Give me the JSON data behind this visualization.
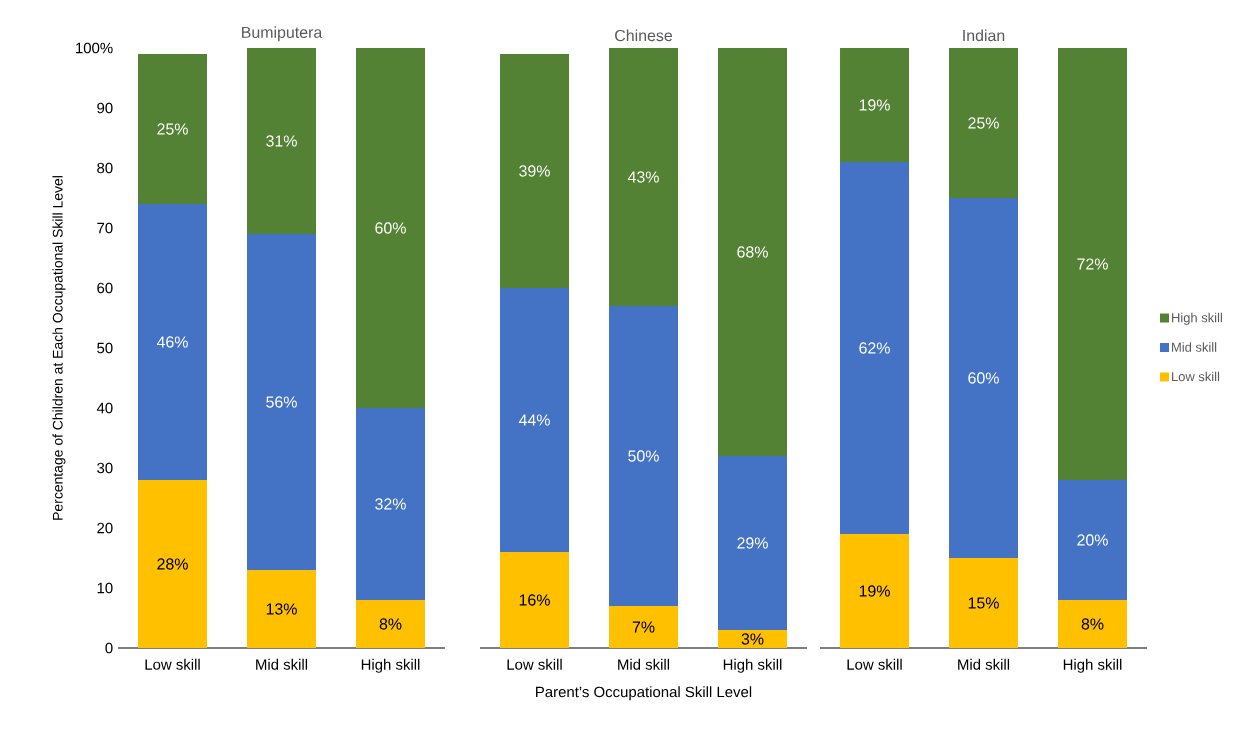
{
  "chart_data": [
    {
      "type": "bar",
      "title": "Bumiputera",
      "ylabel": "Percentage of Children at Each Occupational  Skill Level",
      "categories": [
        "Low skill",
        "Mid skill",
        "High skill"
      ],
      "stacked": true,
      "ylim": [
        0,
        100
      ],
      "yticks": [
        0,
        10,
        20,
        30,
        40,
        50,
        60,
        70,
        80,
        90,
        {
          "value": 100,
          "label": "100%"
        }
      ],
      "grid": false,
      "legend": false,
      "series": [
        {
          "color": "#ffc000",
          "values": [
            28,
            13,
            8
          ],
          "value_labels": [
            "28%",
            "13%",
            "8%"
          ]
        },
        {
          "color": "#4472c4",
          "values": [
            46,
            56,
            32
          ],
          "value_labels": [
            "46%",
            "56%",
            "32%"
          ]
        },
        {
          "color": "#548235",
          "values": [
            25,
            31,
            60
          ],
          "value_labels": [
            "25%",
            "31%",
            "60%"
          ]
        }
      ]
    },
    {
      "type": "bar",
      "title": "Chinese",
      "xlabel": "Parent’s Occupational Skill Level",
      "categories": [
        "Low skill",
        "Mid skill",
        "High skill"
      ],
      "stacked": true,
      "ylim": [
        0,
        100
      ],
      "tick_labels": "x",
      "grid": false,
      "legend": false,
      "series": [
        {
          "color": "#ffc000",
          "values": [
            16,
            7,
            3
          ],
          "value_labels": [
            "16%",
            "7%",
            "3%"
          ]
        },
        {
          "color": "#4472c4",
          "values": [
            44,
            50,
            29
          ],
          "value_labels": [
            "44%",
            "50%",
            "29%"
          ]
        },
        {
          "color": "#548235",
          "values": [
            39,
            43,
            68
          ],
          "value_labels": [
            "39%",
            "43%",
            "68%"
          ]
        }
      ]
    },
    {
      "type": "bar",
      "title": "Indian",
      "categories": [
        "Low skill",
        "Mid skill",
        "High skill"
      ],
      "stacked": true,
      "ylim": [
        0,
        100
      ],
      "tick_labels": "x",
      "grid": false,
      "legend": "right",
      "series": [
        {
          "name": "Low skill",
          "color": "#ffc000",
          "values": [
            19,
            15,
            8
          ],
          "value_labels": [
            "19%",
            "15%",
            "8%"
          ]
        },
        {
          "name": "Mid skill",
          "color": "#4472c4",
          "values": [
            62,
            60,
            20
          ],
          "value_labels": [
            "62%",
            "60%",
            "20%"
          ]
        },
        {
          "name": "High skill",
          "color": "#548235",
          "values": [
            19,
            25,
            72
          ],
          "value_labels": [
            "19%",
            "25%",
            "72%"
          ]
        }
      ]
    }
  ]
}
